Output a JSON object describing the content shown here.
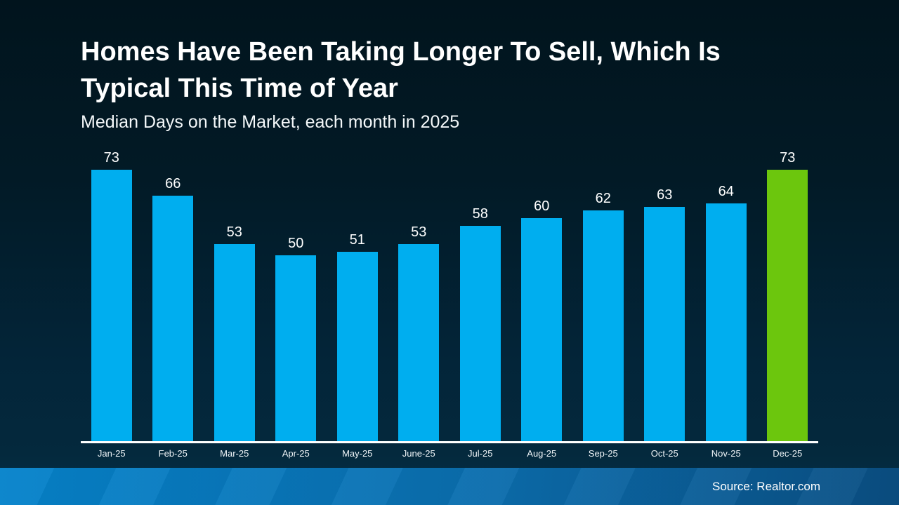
{
  "slide": {
    "title": "Homes Have Been Taking Longer To Sell, Which Is\nTypical This Time of Year",
    "subtitle": "Median Days on the Market, each month in 2025"
  },
  "footer": {
    "source": "Source: Realtor.com"
  },
  "colors": {
    "bar_blue": "#00AEEF",
    "bar_highlight_green": "#6CC60D",
    "background_top": "#01141D",
    "background_bottom": "#053049",
    "footer_blue_left": "#0583CB",
    "footer_blue_right": "#0A4E82",
    "axis_line": "#FFFFFF",
    "text": "#FFFFFF"
  },
  "chart_data": {
    "type": "bar",
    "title": "Homes Have Been Taking Longer To Sell, Which Is Typical This Time of Year",
    "subtitle": "Median Days on the Market, each month in 2025",
    "categories": [
      "Jan-25",
      "Feb-25",
      "Mar-25",
      "Apr-25",
      "May-25",
      "June-25",
      "Jul-25",
      "Aug-25",
      "Sep-25",
      "Oct-25",
      "Nov-25",
      "Dec-25"
    ],
    "values": [
      73,
      66,
      53,
      50,
      51,
      53,
      58,
      60,
      62,
      63,
      64,
      73
    ],
    "value_labels_shown": true,
    "xlabel": "",
    "ylabel": "Median Days on the Market",
    "ylim": [
      0,
      73
    ],
    "grid": false,
    "legend": null,
    "highlight_index": 11,
    "bar_color": "#00AEEF",
    "highlight_color": "#6CC60D",
    "source": "Source: Realtor.com"
  }
}
